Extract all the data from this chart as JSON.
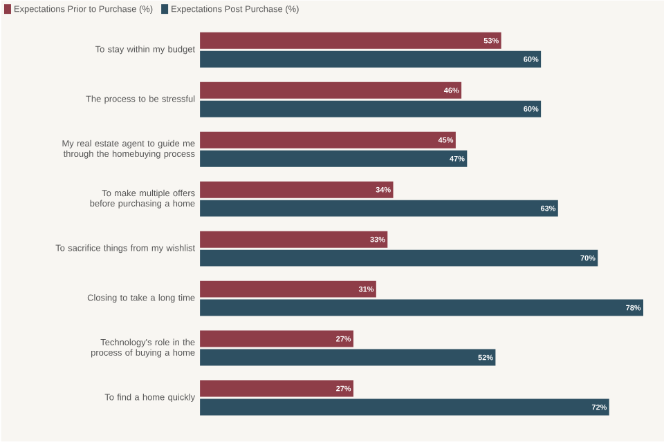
{
  "chart_data": {
    "type": "bar",
    "orientation": "horizontal",
    "legend": "top left",
    "categories": [
      "To stay within my budget",
      "The process to be stressful",
      "My real estate agent to guide me through the homebuying process",
      "To make multiple offers before purchasing a home",
      "To sacrifice things from my wishlist",
      "Closing to take a long time",
      "Technology's role in the process of buying a home",
      "To find a home quickly"
    ],
    "series": [
      {
        "name": "Expectations Prior to Purchase (%)",
        "color": "#8e3d48",
        "values": [
          53,
          46,
          45,
          34,
          33,
          31,
          27,
          27
        ],
        "value_labels": [
          "53%",
          "46%",
          "45%",
          "34%",
          "33%",
          "31%",
          "27%",
          "27%"
        ]
      },
      {
        "name": "Expectations Post Purchase (%)",
        "color": "#2e5062",
        "values": [
          60,
          60,
          47,
          63,
          70,
          78,
          52,
          72
        ],
        "value_labels": [
          "60%",
          "60%",
          "47%",
          "63%",
          "70%",
          "78%",
          "52%",
          "72%"
        ]
      }
    ]
  }
}
